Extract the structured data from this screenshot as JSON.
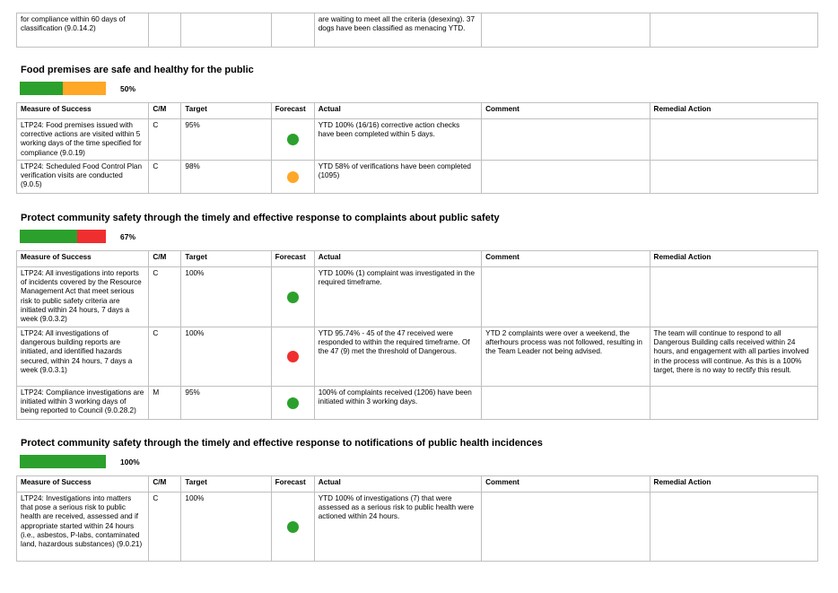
{
  "top_fragment": {
    "measure": "for compliance within 60 days of classification (9.0.14.2)",
    "actual": "are waiting to meet all the criteria (desexing). 37 dogs have been classified as menacing YTD."
  },
  "headers": {
    "measure": "Measure of Success",
    "cm": "C/M",
    "target": "Target",
    "forecast": "Forecast",
    "actual": "Actual",
    "comment": "Comment",
    "remedial": "Remedial Action"
  },
  "colors": {
    "green": "#2ca02c",
    "amber": "#ffa726",
    "red": "#ef2f2f"
  },
  "sections": [
    {
      "title": "Food premises are safe and healthy for the public",
      "progress": {
        "green": 0.5,
        "amber": 0.5,
        "red": 0
      },
      "percent": "50%",
      "rows": [
        {
          "measure": "LTP24: Food premises issued with corrective actions are visited within 5 working days of the time specified for compliance (9.0.19)",
          "cm": "C",
          "target": "95%",
          "forecast": "green",
          "actual": "YTD 100% (16/16) corrective action checks have been completed within 5 days.",
          "comment": "",
          "remedial": ""
        },
        {
          "measure": "LTP24: Scheduled Food Control Plan verification visits are conducted (9.0.5)",
          "cm": "C",
          "target": "98%",
          "forecast": "amber",
          "actual": "YTD 58% of verifications have been completed (1095)",
          "comment": "",
          "remedial": ""
        }
      ]
    },
    {
      "title": "Protect community safety through the timely and effective response to complaints about public safety",
      "progress": {
        "green": 0.67,
        "amber": 0,
        "red": 0.33
      },
      "percent": "67%",
      "rows": [
        {
          "measure": "LTP24: All investigations into reports of incidents covered by the Resource Management Act that meet serious risk to public safety criteria are initiated within 24 hours, 7 days a week (9.0.3.2)",
          "cm": "C",
          "target": "100%",
          "forecast": "green",
          "actual": "YTD 100% (1) complaint was investigated in the required timeframe.",
          "comment": "",
          "remedial": ""
        },
        {
          "measure": "LTP24: All investigations of dangerous building reports are initiated, and identified hazards secured, within 24 hours, 7 days a week (9.0.3.1)",
          "cm": "C",
          "target": "100%",
          "forecast": "red",
          "actual": "YTD 95.74% - 45 of the 47 received were responded to within the required timeframe. Of the 47 (9) met the threshold of Dangerous.",
          "comment": "YTD 2 complaints were over a weekend, the afterhours process was not followed, resulting in the Team Leader not being advised.",
          "remedial": "The team will continue to respond to all Dangerous Building calls received within 24 hours, and engagement with all parties involved in the process will continue. As this is a 100% target, there is no way to rectify this result."
        },
        {
          "measure": "LTP24: Compliance investigations are initiated within 3 working days of being reported to Council (9.0.28.2)",
          "cm": "M",
          "target": "95%",
          "forecast": "green",
          "actual": "100% of complaints received (1206) have been initiated within 3 working days.",
          "comment": "",
          "remedial": ""
        }
      ]
    },
    {
      "title": "Protect community safety through the timely and effective response to notifications of public health incidences",
      "progress": {
        "green": 1,
        "amber": 0,
        "red": 0
      },
      "percent": "100%",
      "rows": [
        {
          "measure": "LTP24: Investigations into matters that pose a serious risk to public health are received, assessed and if appropriate started within 24 hours (i.e., asbestos, P-labs, contaminated land, hazardous substances) (9.0.21)",
          "cm": "C",
          "target": "100%",
          "forecast": "green",
          "actual": "YTD 100% of investigations (7) that were assessed as a serious risk to public health were actioned within 24 hours.",
          "comment": "",
          "remedial": ""
        }
      ]
    }
  ]
}
